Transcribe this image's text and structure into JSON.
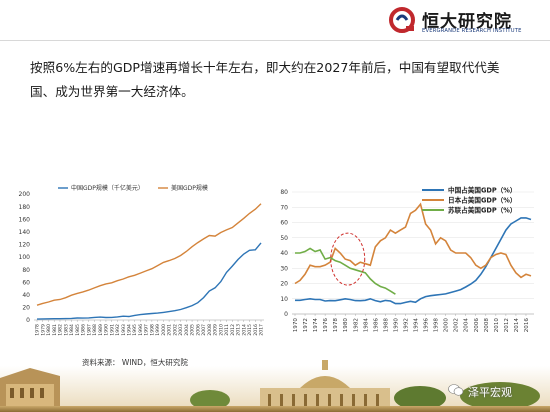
{
  "header": {
    "logo_text": "恒大研究院",
    "logo_subtext": "EVERGRANDE RESEARCH INSTITUTE",
    "logo_icon": "evergrande-logo-icon",
    "brand_color": "#c0282d"
  },
  "intro_text": "按照6%左右的GDP增速再增长十年左右，即大约在2027年前后，中国有望取代代美国、成为世界第一大经济体。",
  "source_text": "资料来源：  WIND，恒大研究院",
  "watermark": {
    "text": "泽平宏观",
    "icon": "wechat-icon"
  },
  "chart_data": [
    {
      "type": "line",
      "legend_placement": "top",
      "ylim": [
        0,
        200
      ],
      "yticks": [
        0,
        20,
        40,
        60,
        80,
        100,
        120,
        140,
        160,
        180,
        200
      ],
      "x": [
        "1978",
        "1979",
        "1980",
        "1981",
        "1982",
        "1983",
        "1984",
        "1985",
        "1986",
        "1987",
        "1988",
        "1989",
        "1990",
        "1991",
        "1992",
        "1993",
        "1994",
        "1995",
        "1996",
        "1997",
        "1998",
        "1999",
        "2000",
        "2001",
        "2002",
        "2003",
        "2004",
        "2005",
        "2006",
        "2007",
        "2008",
        "2009",
        "2010",
        "2011",
        "2012",
        "2013",
        "2014",
        "2015",
        "2016",
        "2017"
      ],
      "series": [
        {
          "name": "中国GDP规模（千亿美元）",
          "color": "#2e75b6",
          "values": [
            1.5,
            1.8,
            1.9,
            2.0,
            2.1,
            2.3,
            2.6,
            3.1,
            3.0,
            3.3,
            4.1,
            4.6,
            3.9,
            4.1,
            4.9,
            6.1,
            5.6,
            7.3,
            8.6,
            9.6,
            10.3,
            10.9,
            12.1,
            13.4,
            14.7,
            16.6,
            19.6,
            22.9,
            27.5,
            35.5,
            46.0,
            51.1,
            60.9,
            75.5,
            85.6,
            96.1,
            104.8,
            110.6,
            111.4,
            122.4
          ]
        },
        {
          "name": "美国GDP规模",
          "color": "#d4843b",
          "values": [
            23.5,
            26.3,
            28.6,
            31.4,
            32.6,
            35.4,
            39.3,
            42.2,
            44.6,
            47.4,
            51.0,
            54.4,
            57.3,
            59.0,
            62.4,
            65.0,
            68.6,
            71.0,
            74.4,
            78.0,
            81.5,
            86.3,
            91.5,
            94.3,
            97.6,
            102.4,
            108.8,
            116.3,
            122.8,
            128.8,
            134.2,
            133.2,
            138.9,
            143.0,
            146.8,
            154.2,
            161.5,
            169.2,
            175.8,
            184.5
          ]
        }
      ]
    },
    {
      "type": "line",
      "legend_placement": "top-right",
      "ylim": [
        0,
        80
      ],
      "yticks": [
        0,
        10,
        20,
        30,
        40,
        50,
        60,
        70,
        80
      ],
      "xticks": [
        "1970",
        "1972",
        "1974",
        "1976",
        "1978",
        "1980",
        "1982",
        "1984",
        "1986",
        "1988",
        "1990",
        "1992",
        "1994",
        "1996",
        "1998",
        "2000",
        "2002",
        "2004",
        "2006",
        "2008",
        "2010",
        "2012",
        "2014",
        "2016"
      ],
      "annotation": "dashed-red-circle-around-1980",
      "series": [
        {
          "name": "中国占美国GDP（%）",
          "color": "#2e75b6",
          "x": [
            1970,
            1971,
            1972,
            1973,
            1974,
            1975,
            1976,
            1977,
            1978,
            1979,
            1980,
            1981,
            1982,
            1983,
            1984,
            1985,
            1986,
            1987,
            1988,
            1989,
            1990,
            1991,
            1992,
            1993,
            1994,
            1995,
            1996,
            1997,
            1998,
            1999,
            2000,
            2001,
            2002,
            2003,
            2004,
            2005,
            2006,
            2007,
            2008,
            2009,
            2010,
            2011,
            2012,
            2013,
            2014,
            2015,
            2016,
            2017
          ],
          "values": [
            9,
            9,
            9.5,
            10,
            9.5,
            9.5,
            8.5,
            8.8,
            8.7,
            9.3,
            10,
            9.5,
            8.8,
            8.7,
            9,
            10,
            8.8,
            8,
            8.9,
            8.5,
            6.8,
            6.8,
            7.6,
            8.3,
            7.7,
            10,
            11.4,
            12,
            12.4,
            12.8,
            13.2,
            14.1,
            15,
            16,
            17.7,
            19.6,
            22,
            26,
            31,
            37,
            43,
            49,
            55,
            59,
            61,
            63,
            63,
            62
          ]
        },
        {
          "name": "日本占美国GDP（%）",
          "color": "#d4843b",
          "x": [
            1970,
            1971,
            1972,
            1973,
            1974,
            1975,
            1976,
            1977,
            1978,
            1979,
            1980,
            1981,
            1982,
            1983,
            1984,
            1985,
            1986,
            1987,
            1988,
            1989,
            1990,
            1991,
            1992,
            1993,
            1994,
            1995,
            1996,
            1997,
            1998,
            1999,
            2000,
            2001,
            2002,
            2003,
            2004,
            2005,
            2006,
            2007,
            2008,
            2009,
            2010,
            2011,
            2012,
            2013,
            2014,
            2015,
            2016,
            2017
          ],
          "values": [
            20,
            22,
            26,
            32,
            31,
            31,
            32,
            34,
            43,
            40,
            36,
            35,
            32,
            34,
            33,
            32,
            44,
            48,
            50,
            55,
            53,
            55,
            57,
            66,
            68,
            72,
            59,
            55,
            46,
            50,
            48,
            42,
            40,
            40,
            40,
            37,
            32,
            30,
            32,
            37,
            39,
            40,
            39,
            32,
            27,
            24,
            26,
            25
          ]
        },
        {
          "name": "苏联占美国GDP（%）",
          "color": "#70ad47",
          "x": [
            1970,
            1971,
            1972,
            1973,
            1974,
            1975,
            1976,
            1977,
            1978,
            1979,
            1980,
            1981,
            1982,
            1983,
            1984,
            1985,
            1986,
            1987,
            1988,
            1989,
            1990
          ],
          "values": [
            40,
            40,
            41,
            43,
            41,
            42,
            36,
            37,
            35,
            34,
            32,
            30,
            29,
            28,
            27,
            23,
            20,
            18,
            17,
            15,
            13
          ]
        }
      ]
    }
  ]
}
